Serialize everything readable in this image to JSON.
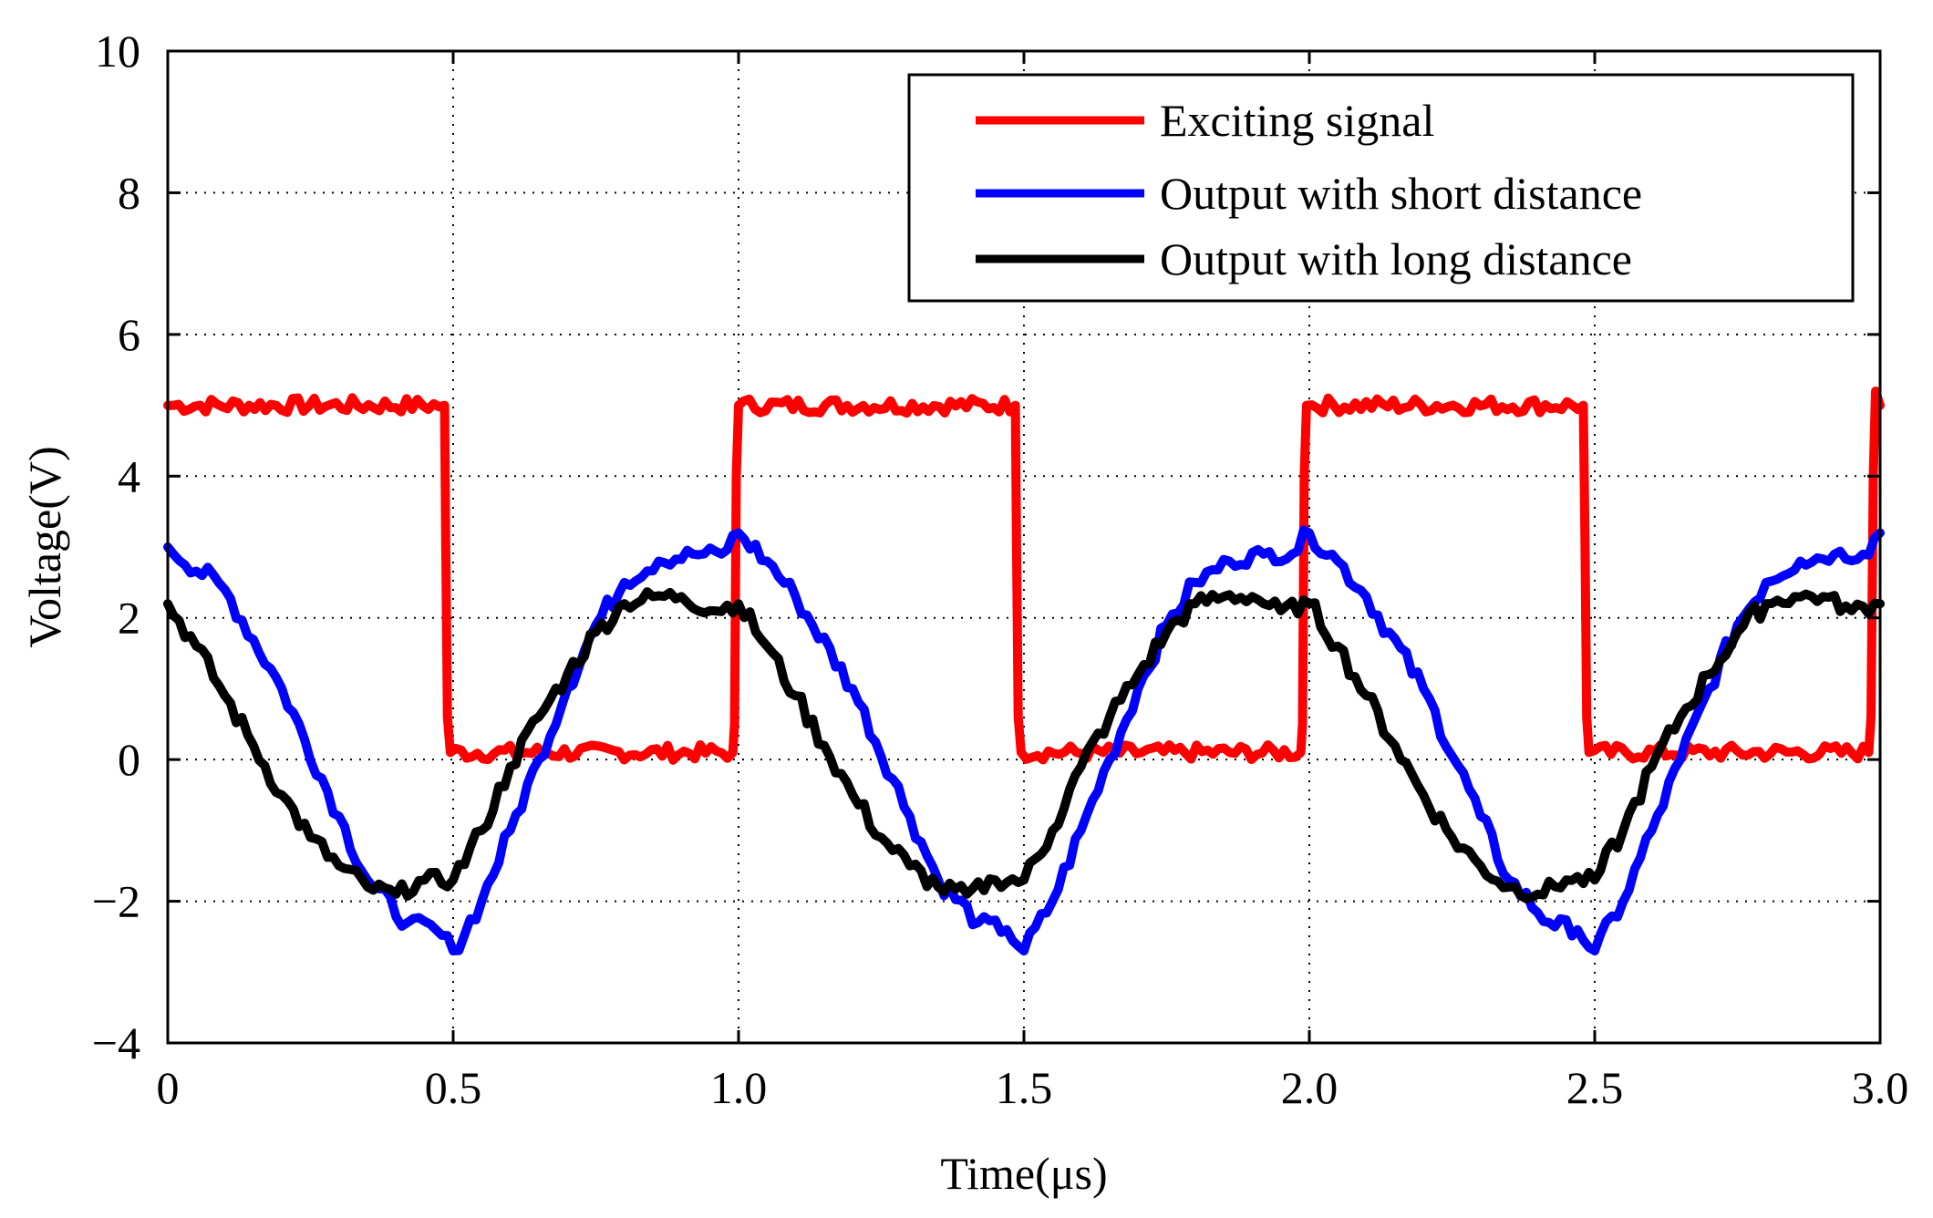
{
  "chart_data": {
    "type": "line",
    "title": "",
    "xlabel": "Time(μs)",
    "ylabel": "Voltage(V)",
    "xlim": [
      0,
      3.0
    ],
    "ylim": [
      -4,
      10
    ],
    "xticks": [
      0,
      0.5,
      1.0,
      1.5,
      2.0,
      2.5,
      3.0
    ],
    "xtick_labels": [
      "0",
      "0.5",
      "1.0",
      "1.5",
      "2.0",
      "2.5",
      "3.0"
    ],
    "yticks": [
      -4,
      -2,
      0,
      2,
      4,
      6,
      8,
      10
    ],
    "ytick_labels": [
      "−4",
      "−2",
      "0",
      "2",
      "4",
      "6",
      "8",
      "10"
    ],
    "grid": true,
    "legend_position": "top-right",
    "series": [
      {
        "name": "Exciting signal",
        "color": "#ff0000",
        "x": [
          0,
          0.485,
          0.487,
          0.49,
          0.495,
          0.99,
          0.993,
          0.996,
          1.0,
          1.485,
          1.487,
          1.49,
          1.495,
          1.985,
          1.988,
          1.991,
          1.995,
          2.48,
          2.483,
          2.486,
          2.49,
          2.98,
          2.984,
          2.988,
          2.992,
          3.0
        ],
        "values": [
          5.0,
          5.0,
          3.0,
          0.6,
          0.1,
          0.1,
          0.5,
          4.0,
          5.0,
          5.0,
          3.0,
          0.6,
          0.1,
          0.1,
          0.5,
          4.0,
          5.0,
          5.0,
          3.0,
          0.6,
          0.1,
          0.1,
          0.6,
          4.0,
          5.2,
          5.0
        ]
      },
      {
        "name": "Output with short distance",
        "color": "#0000ff",
        "x": [
          0,
          0.1,
          0.2,
          0.3,
          0.35,
          0.42,
          0.47,
          0.5,
          0.55,
          0.6,
          0.65,
          0.7,
          0.75,
          0.8,
          0.86,
          0.92,
          0.97,
          1.0,
          1.05,
          1.1,
          1.2,
          1.3,
          1.35,
          1.42,
          1.47,
          1.5,
          1.55,
          1.6,
          1.65,
          1.7,
          1.75,
          1.8,
          1.86,
          1.92,
          1.97,
          2.0,
          2.05,
          2.1,
          2.2,
          2.3,
          2.35,
          2.42,
          2.47,
          2.5,
          2.55,
          2.6,
          2.65,
          2.7,
          2.75,
          2.8,
          2.86,
          2.92,
          2.97,
          3.0
        ],
        "values": [
          3.0,
          2.4,
          1.0,
          -0.8,
          -1.7,
          -2.3,
          -2.4,
          -2.7,
          -2.0,
          -1.0,
          0.0,
          1.0,
          1.9,
          2.5,
          2.8,
          2.9,
          2.9,
          3.2,
          2.8,
          2.3,
          1.0,
          -0.8,
          -1.7,
          -2.3,
          -2.4,
          -2.7,
          -2.0,
          -1.0,
          0.0,
          1.0,
          1.9,
          2.5,
          2.8,
          2.9,
          2.9,
          3.2,
          2.8,
          2.3,
          1.0,
          -0.8,
          -1.7,
          -2.3,
          -2.4,
          -2.7,
          -2.0,
          -1.0,
          0.0,
          1.0,
          1.9,
          2.5,
          2.8,
          2.9,
          2.9,
          3.2
        ]
      },
      {
        "name": "Output with long distance",
        "color": "#000000",
        "x": [
          0,
          0.05,
          0.1,
          0.15,
          0.2,
          0.25,
          0.3,
          0.35,
          0.4,
          0.45,
          0.5,
          0.55,
          0.6,
          0.65,
          0.7,
          0.75,
          0.8,
          0.85,
          0.9,
          0.95,
          1.0,
          1.05,
          1.1,
          1.15,
          1.2,
          1.25,
          1.3,
          1.35,
          1.4,
          1.45,
          1.5,
          1.55,
          1.6,
          1.65,
          1.7,
          1.75,
          1.8,
          1.85,
          1.9,
          1.95,
          2.0,
          2.05,
          2.1,
          2.15,
          2.2,
          2.25,
          2.3,
          2.35,
          2.4,
          2.45,
          2.5,
          2.55,
          2.6,
          2.65,
          2.7,
          2.75,
          2.8,
          2.85,
          2.9,
          2.95,
          3.0
        ],
        "values": [
          2.2,
          1.6,
          0.9,
          0.2,
          -0.5,
          -1.1,
          -1.5,
          -1.8,
          -1.9,
          -1.7,
          -1.7,
          -1.0,
          -0.1,
          0.6,
          1.2,
          1.8,
          2.2,
          2.3,
          2.3,
          2.1,
          2.2,
          1.6,
          0.9,
          0.2,
          -0.5,
          -1.1,
          -1.5,
          -1.8,
          -1.9,
          -1.7,
          -1.7,
          -1.0,
          -0.1,
          0.6,
          1.2,
          1.8,
          2.2,
          2.3,
          2.3,
          2.1,
          2.2,
          1.6,
          0.9,
          0.2,
          -0.5,
          -1.1,
          -1.5,
          -1.8,
          -1.9,
          -1.7,
          -1.7,
          -1.0,
          -0.1,
          0.6,
          1.2,
          1.8,
          2.2,
          2.3,
          2.3,
          2.1,
          2.2
        ]
      }
    ]
  }
}
